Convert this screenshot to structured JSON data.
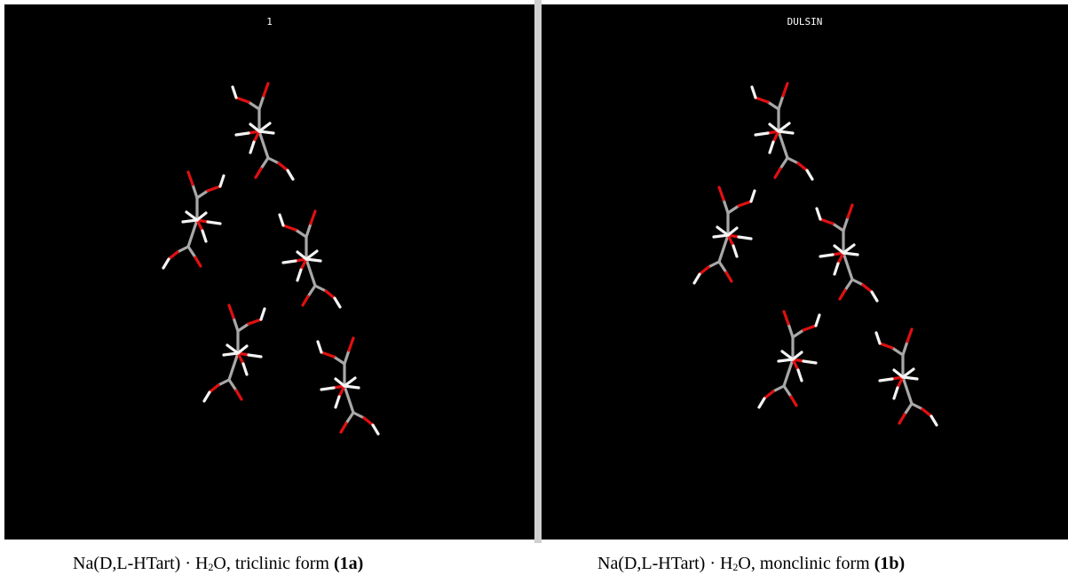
{
  "panels": [
    {
      "title": "1",
      "caption": {
        "prefix": "Na(D,L-HTart) · H",
        "sub": "2",
        "rest": "O, triclinic form ",
        "label": "(1a)"
      }
    },
    {
      "title": "DULSIN",
      "caption": {
        "prefix": "Na(D,L-HTart) · H",
        "sub": "2",
        "rest": "O, monclinic form ",
        "label": "(1b)"
      }
    }
  ]
}
